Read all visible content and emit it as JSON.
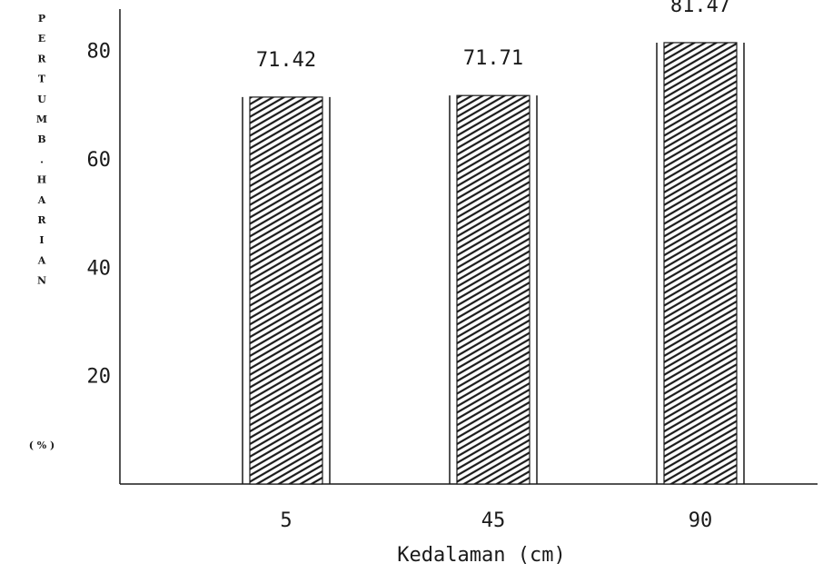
{
  "chart_data": {
    "type": "bar",
    "title": "",
    "xlabel": "Kedalaman (cm)",
    "ylabel": "PERTUMB. HARIAN (%)",
    "ylabel_letters": [
      "P",
      "E",
      "R",
      "T",
      "U",
      "M",
      "B",
      ".",
      "H",
      "A",
      "R",
      "I",
      "A",
      "N",
      "( % )"
    ],
    "categories": [
      "5",
      "45",
      "90"
    ],
    "values": [
      71.42,
      71.71,
      81.47
    ],
    "value_labels": [
      "71.42",
      "71.71",
      "81.47"
    ],
    "yticks": [
      "20",
      "40",
      "60",
      "80"
    ],
    "ytick_values": [
      20,
      40,
      60,
      80
    ],
    "ylim": [
      0,
      88
    ],
    "grid": false,
    "legend": "none",
    "bar_fill": "hatched",
    "colors": {
      "ink": "#1a1a1a",
      "background": "#ffffff"
    }
  }
}
